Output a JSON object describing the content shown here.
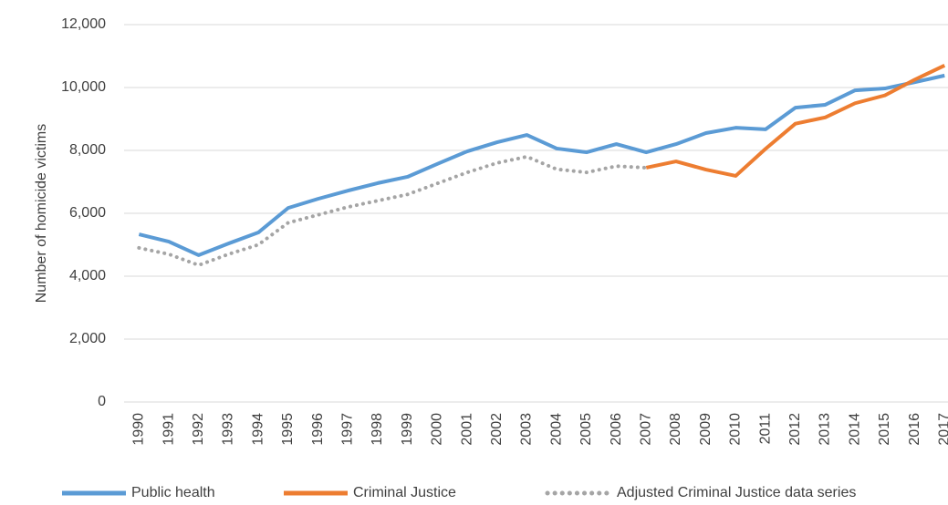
{
  "chart_data": {
    "type": "line",
    "y_label": "Number of homicide victims",
    "categories": [
      "1990",
      "1991",
      "1992",
      "1993",
      "1994",
      "1995",
      "1996",
      "1997",
      "1998",
      "1999",
      "2000",
      "2001",
      "2002",
      "2003",
      "2004",
      "2005",
      "2006",
      "2007",
      "2008",
      "2009",
      "2010",
      "2011",
      "2012",
      "2013",
      "2014",
      "2015",
      "2016",
      "2017"
    ],
    "series": [
      {
        "name": "Public health",
        "color": "#5b9bd5",
        "style": "solid",
        "values": [
          5330,
          5100,
          4670,
          5040,
          5390,
          6170,
          6460,
          6720,
          6960,
          7160,
          7570,
          7970,
          8260,
          8490,
          8060,
          7940,
          8200,
          7940,
          8200,
          8550,
          8720,
          8670,
          9360,
          9450,
          9910,
          9970,
          10170,
          10380
        ]
      },
      {
        "name": "Criminal Justice",
        "color": "#ed7d31",
        "style": "solid",
        "values": [
          null,
          null,
          null,
          null,
          null,
          null,
          null,
          null,
          null,
          null,
          null,
          null,
          null,
          null,
          null,
          null,
          null,
          7450,
          7650,
          7390,
          7190,
          8050,
          8850,
          9050,
          9500,
          9750,
          10250,
          10700
        ]
      },
      {
        "name": "Adjusted Criminal Justice data series",
        "color": "#a5a5a5",
        "style": "dotted",
        "values": [
          4900,
          4700,
          4350,
          4700,
          5000,
          5700,
          5950,
          6200,
          6400,
          6600,
          6950,
          7300,
          7600,
          7800,
          7400,
          7300,
          7500,
          7450,
          null,
          null,
          null,
          null,
          null,
          null,
          null,
          null,
          null,
          null
        ]
      }
    ],
    "ylim": [
      0,
      12000
    ],
    "yticks": [
      0,
      {
        "value": 2000,
        "label": "2,000"
      },
      {
        "value": 4000,
        "label": "4,000"
      },
      {
        "value": 6000,
        "label": "6,000"
      },
      {
        "value": 8000,
        "label": "8,000"
      },
      {
        "value": 10000,
        "label": "10,000"
      },
      {
        "value": 12000,
        "label": "12,000"
      }
    ],
    "grid": true
  }
}
